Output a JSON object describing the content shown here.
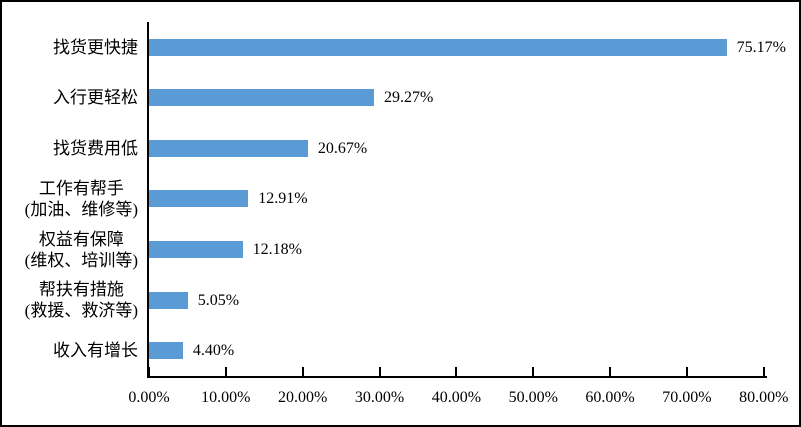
{
  "chart_data": {
    "type": "bar",
    "orientation": "horizontal",
    "title": "",
    "xlabel": "",
    "ylabel": "",
    "categories": [
      [
        "找货更快捷"
      ],
      [
        "入行更轻松"
      ],
      [
        "找货费用低"
      ],
      [
        "工作有帮手",
        "(加油、维修等)"
      ],
      [
        "权益有保障",
        "(维权、培训等)"
      ],
      [
        "帮扶有措施",
        "(救援、救济等)"
      ],
      [
        "收入有增长"
      ]
    ],
    "values": [
      75.17,
      29.27,
      20.67,
      12.91,
      12.18,
      5.05,
      4.4
    ],
    "value_labels": [
      "75.17%",
      "29.27%",
      "20.67%",
      "12.91%",
      "12.18%",
      "5.05%",
      "4.40%"
    ],
    "xlim": [
      0,
      80
    ],
    "x_tick_step": 10,
    "x_tick_labels": [
      "0.00%",
      "10.00%",
      "20.00%",
      "30.00%",
      "40.00%",
      "50.00%",
      "60.00%",
      "70.00%",
      "80.00%"
    ],
    "grid": false,
    "legend": false,
    "bar_color": "#5B9BD5",
    "axis_color": "#000000",
    "background_color": "#FFFFFF"
  }
}
